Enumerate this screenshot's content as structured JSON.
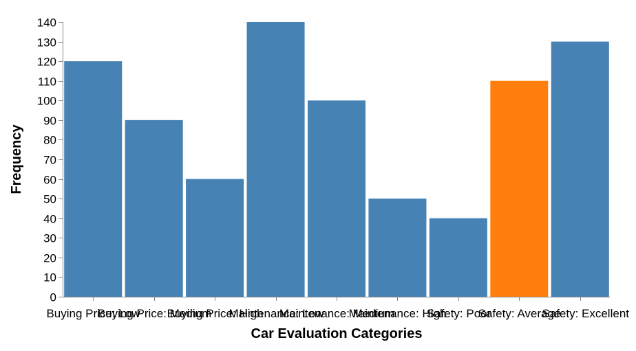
{
  "chart_data": {
    "type": "bar",
    "title": "",
    "xlabel": "Car Evaluation Categories",
    "ylabel": "Frequency",
    "ylim": [
      0,
      140
    ],
    "yticks": [
      0,
      10,
      20,
      30,
      40,
      50,
      60,
      70,
      80,
      90,
      100,
      110,
      120,
      130,
      140
    ],
    "grid": false,
    "categories": [
      "Buying Price: Low",
      "Buying Price: Medium",
      "Buying Price: High",
      "Maintenance: Low",
      "Maintenance: Medium",
      "Maintenance: High",
      "Safety: Poor",
      "Safety: Average",
      "Safety: Excellent"
    ],
    "values": [
      120,
      90,
      60,
      140,
      100,
      50,
      40,
      110,
      130
    ],
    "colors": {
      "default": "#4682b4",
      "highlight": "#ff7f0e",
      "axis": "#888888"
    },
    "highlighted_category": "Safety: Average"
  }
}
